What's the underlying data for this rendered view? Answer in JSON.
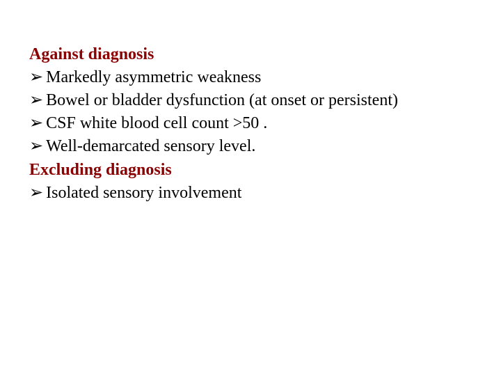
{
  "slide": {
    "background_color": "#ffffff",
    "font_family": "Times New Roman",
    "body_fontsize": 24,
    "body_color": "#000000",
    "heading_color": "#8b0000",
    "bullet_glyph": "➢",
    "heading1": "Against diagnosis",
    "items1": [
      "Markedly asymmetric weakness",
      "Bowel or bladder dysfunction (at onset or persistent)",
      "CSF white blood cell count >50 .",
      "Well-demarcated sensory level."
    ],
    "heading2": "Excluding diagnosis",
    "items2": [
      "Isolated sensory involvement"
    ]
  }
}
